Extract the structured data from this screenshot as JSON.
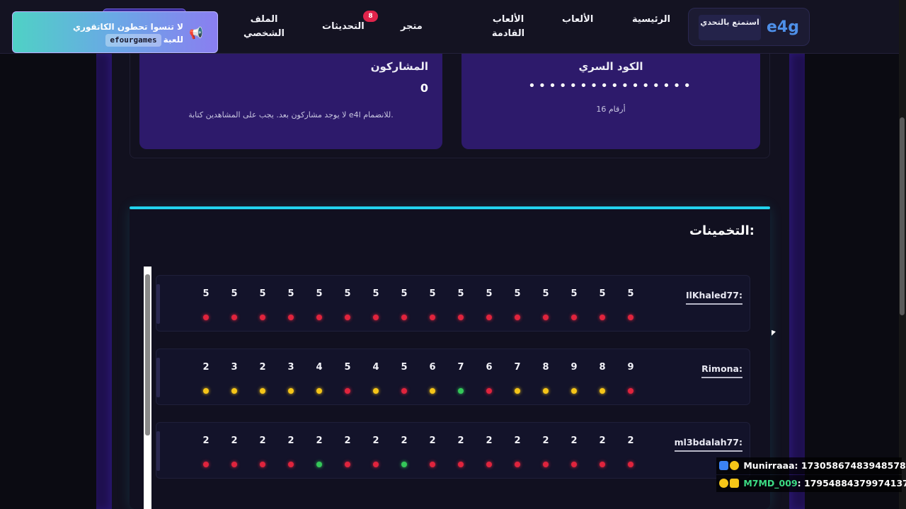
{
  "nav": {
    "logo": "e4g",
    "tagline": "استمتع بالتحدي",
    "items": [
      "الرئيسية",
      "الألعاب",
      "الألعاب القادمة",
      "متجر",
      "التحديثات",
      "الملف الشخصي"
    ],
    "updates_badge": "8"
  },
  "notification": {
    "line1": "لا تنسوا تحطون الكاتقوري",
    "code": "efourgames",
    "suffix": "للعبة"
  },
  "cards": {
    "participants_title": "المشاركون",
    "participants_count": "0",
    "participants_note": "لا يوجد مشاركون بعد. يجب على المشاهدين كتابة e4l للانضمام.",
    "secret_title": "الكود السري",
    "secret_mask": "••••••••••••••••",
    "secret_note": "16 أرقام"
  },
  "guesses": {
    "title": "التخمينات:",
    "rows": [
      {
        "name": "IlKhaled77:",
        "digits": [
          "5",
          "5",
          "5",
          "5",
          "5",
          "5",
          "5",
          "5",
          "5",
          "5",
          "5",
          "5",
          "5",
          "5",
          "5",
          "5"
        ],
        "status": [
          "red",
          "red",
          "red",
          "red",
          "red",
          "red",
          "red",
          "red",
          "red",
          "red",
          "red",
          "red",
          "red",
          "red",
          "red",
          "red"
        ]
      },
      {
        "name": "Rimona:",
        "digits": [
          "2",
          "3",
          "2",
          "3",
          "4",
          "5",
          "4",
          "5",
          "6",
          "7",
          "6",
          "7",
          "8",
          "9",
          "8",
          "9"
        ],
        "status": [
          "yellow",
          "yellow",
          "yellow",
          "yellow",
          "yellow",
          "red",
          "yellow",
          "red",
          "yellow",
          "green",
          "red",
          "yellow",
          "yellow",
          "yellow",
          "yellow",
          "red"
        ]
      },
      {
        "name": "ml3bdalah77:",
        "digits": [
          "2",
          "2",
          "2",
          "2",
          "2",
          "2",
          "2",
          "2",
          "2",
          "2",
          "2",
          "2",
          "2",
          "2",
          "2",
          "2"
        ],
        "status": [
          "red",
          "red",
          "red",
          "red",
          "green",
          "red",
          "red",
          "green",
          "red",
          "red",
          "red",
          "red",
          "red",
          "red",
          "red",
          "red"
        ]
      }
    ]
  },
  "chat": [
    {
      "user": "Munirraaa",
      "user_color": "#ffffff",
      "message": ": 17305867483948578"
    },
    {
      "user": "M7MD_009",
      "user_color": "#3ddc84",
      "message": ": 17954884379974137"
    }
  ],
  "colors": {
    "accent": "#22d3ee",
    "card_bg": "#2d1a6b",
    "logo": "#4e8fe8"
  }
}
